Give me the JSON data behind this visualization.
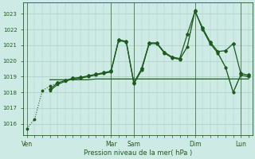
{
  "bg_color": "#ceeae4",
  "grid_color": "#a8d0c8",
  "line_color": "#1e5c1e",
  "title": "Pression niveau de la mer( hPa )",
  "ylabel_ticks": [
    1016,
    1017,
    1018,
    1019,
    1020,
    1021,
    1022,
    1023
  ],
  "day_labels": [
    "Ven",
    "Mar",
    "Sam",
    "Dim",
    "Lun"
  ],
  "day_positions": [
    0,
    11,
    14,
    22,
    28
  ],
  "xlim": [
    -0.5,
    29.5
  ],
  "ylim": [
    1015.3,
    1023.7
  ],
  "line1": {
    "x": [
      3,
      4,
      5,
      6,
      7,
      8,
      9,
      10,
      11,
      12,
      13,
      14,
      15,
      16,
      17,
      18,
      19,
      20,
      21,
      22,
      23,
      24,
      25,
      26,
      27,
      28,
      29
    ],
    "y": [
      1018.8,
      1018.8,
      1018.8,
      1018.8,
      1018.8,
      1018.8,
      1018.85,
      1018.85,
      1018.85,
      1018.85,
      1018.85,
      1018.85,
      1018.85,
      1018.85,
      1018.85,
      1018.85,
      1018.85,
      1018.85,
      1018.85,
      1018.85,
      1018.85,
      1018.85,
      1018.85,
      1018.85,
      1018.85,
      1018.85,
      1018.85
    ],
    "lw": 0.9,
    "style": "-",
    "marker": null
  },
  "line2": {
    "x": [
      3,
      4,
      5,
      6,
      7,
      8,
      9,
      10,
      11,
      12,
      13,
      14,
      15,
      16,
      17,
      18,
      19,
      20,
      21,
      22,
      23,
      24,
      25,
      26,
      27,
      28,
      29
    ],
    "y": [
      1018.1,
      1018.5,
      1018.7,
      1018.85,
      1018.9,
      1019.0,
      1019.1,
      1019.2,
      1019.3,
      1021.3,
      1021.2,
      1018.55,
      1019.4,
      1021.1,
      1021.1,
      1020.5,
      1020.2,
      1020.1,
      1020.9,
      1023.2,
      1022.0,
      1021.1,
      1020.5,
      1019.6,
      1018.0,
      1019.1,
      1019.0
    ],
    "lw": 0.9,
    "style": "-",
    "marker": "s",
    "ms": 2.0
  },
  "line3": {
    "x": [
      3,
      4,
      5,
      6,
      7,
      8,
      9,
      10,
      11,
      12,
      13,
      14,
      15,
      16,
      17,
      18,
      19,
      20,
      21,
      22,
      23,
      24,
      25,
      26,
      27,
      28,
      29
    ],
    "y": [
      1018.2,
      1018.6,
      1018.75,
      1018.9,
      1018.95,
      1019.05,
      1019.15,
      1019.25,
      1019.35,
      1021.35,
      1021.25,
      1018.6,
      1019.5,
      1021.15,
      1021.15,
      1020.55,
      1020.25,
      1020.15,
      1021.7,
      1023.15,
      1022.1,
      1021.2,
      1020.6,
      1020.65,
      1021.1,
      1019.2,
      1019.1
    ],
    "lw": 0.9,
    "style": "-",
    "marker": "D",
    "ms": 2.0
  },
  "line4": {
    "x": [
      0,
      1,
      2,
      3,
      4,
      5,
      6,
      7,
      8,
      9,
      10,
      11,
      12,
      13,
      14,
      15,
      16,
      17,
      18,
      19,
      20,
      21,
      22,
      23,
      24,
      25,
      26,
      27,
      28,
      29
    ],
    "y": [
      1015.7,
      1016.3,
      1018.1,
      1018.4,
      1018.6,
      1018.75,
      1018.85,
      1018.9,
      1019.0,
      1019.1,
      1019.2,
      1019.3,
      1021.3,
      1021.2,
      1018.55,
      1019.4,
      1021.1,
      1021.1,
      1020.5,
      1020.2,
      1020.1,
      1020.9,
      1023.2,
      1022.0,
      1021.1,
      1020.5,
      1019.6,
      1018.0,
      1019.1,
      1019.0
    ],
    "lw": 0.8,
    "style": ":",
    "marker": "o",
    "ms": 1.8
  }
}
